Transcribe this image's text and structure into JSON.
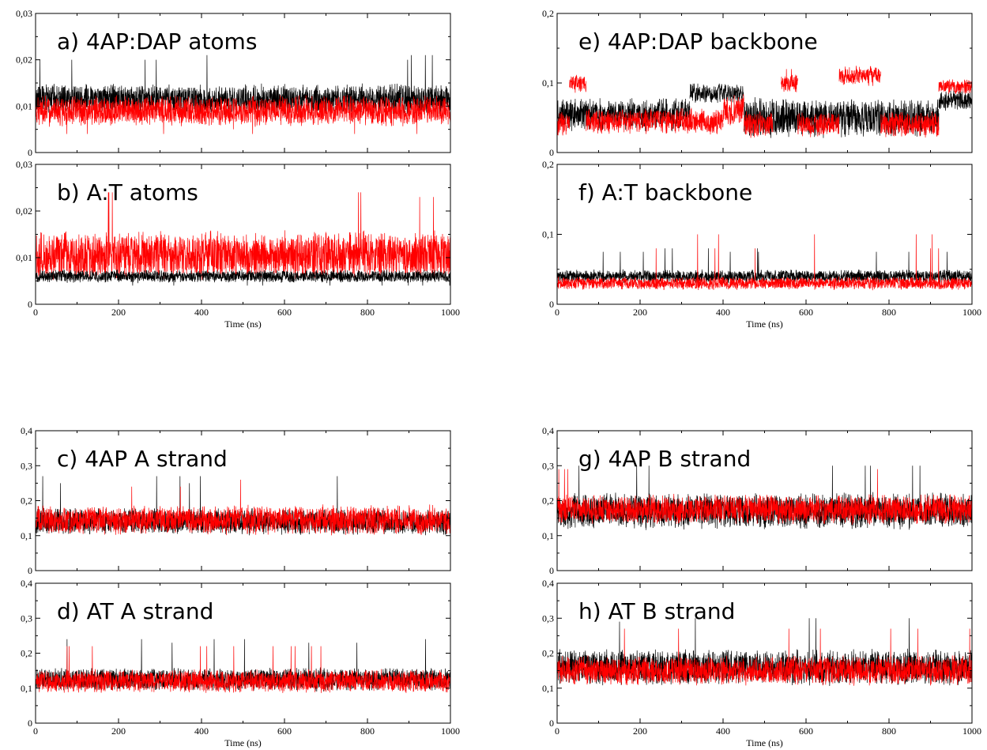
{
  "colors": {
    "series_black": "#000000",
    "series_red": "#ff0000",
    "frame": "#000000",
    "background": "#ffffff"
  },
  "chart_data": [
    {
      "id": "a",
      "type": "line",
      "title": "a) 4AP:DAP atoms",
      "xlabel": "",
      "ylabel": "",
      "xlim": [
        0,
        1000
      ],
      "ylim": [
        0,
        0.03
      ],
      "xticks": [],
      "yticks": [
        "0",
        "0,01",
        "0,02",
        "0,03"
      ],
      "yticks_values": [
        0,
        0.01,
        0.02,
        0.03
      ],
      "grid": false,
      "series": [
        {
          "color": "#000000",
          "segments": [
            {
              "x0": 0,
              "x1": 1000,
              "mean": 0.0115,
              "amp": 0.0035,
              "spikes": [
                0.02,
                0.021,
                0.02
              ]
            }
          ]
        },
        {
          "color": "#ff0000",
          "segments": [
            {
              "x0": 0,
              "x1": 1000,
              "mean": 0.009,
              "amp": 0.0035,
              "spikes": [
                0.004,
                0.005
              ]
            }
          ]
        }
      ]
    },
    {
      "id": "b",
      "type": "line",
      "title": "b) A:T atoms",
      "xlabel": "Time (ns)",
      "ylabel": "",
      "xlim": [
        0,
        1000
      ],
      "ylim": [
        0,
        0.03
      ],
      "xticks": [
        "0",
        "200",
        "400",
        "600",
        "800",
        "1000"
      ],
      "xticks_values": [
        0,
        200,
        400,
        600,
        800,
        1000
      ],
      "yticks": [
        "0",
        "0,01",
        "0,02",
        "0,03"
      ],
      "yticks_values": [
        0,
        0.01,
        0.02,
        0.03
      ],
      "grid": false,
      "series": [
        {
          "color": "#ff0000",
          "segments": [
            {
              "x0": 0,
              "x1": 1000,
              "mean": 0.0105,
              "amp": 0.0055,
              "spikes": [
                0.024,
                0.022,
                0.023
              ]
            }
          ]
        },
        {
          "color": "#000000",
          "segments": [
            {
              "x0": 0,
              "x1": 1000,
              "mean": 0.006,
              "amp": 0.0015,
              "spikes": [
                0.004
              ]
            }
          ]
        }
      ]
    },
    {
      "id": "c",
      "type": "line",
      "title": "c) 4AP A strand",
      "xlabel": "",
      "ylabel": "",
      "xlim": [
        0,
        1000
      ],
      "ylim": [
        0,
        0.4
      ],
      "xticks": [],
      "yticks": [
        "0",
        "0,1",
        "0,2",
        "0,3",
        "0,4"
      ],
      "yticks_values": [
        0,
        0.1,
        0.2,
        0.3,
        0.4
      ],
      "grid": false,
      "series": [
        {
          "color": "#000000",
          "segments": [
            {
              "x0": 0,
              "x1": 1000,
              "mean": 0.14,
              "amp": 0.04,
              "spikes": [
                0.27,
                0.25
              ]
            }
          ]
        },
        {
          "color": "#ff0000",
          "segments": [
            {
              "x0": 0,
              "x1": 1000,
              "mean": 0.145,
              "amp": 0.045,
              "spikes": [
                0.26,
                0.24
              ]
            }
          ]
        }
      ]
    },
    {
      "id": "d",
      "type": "line",
      "title": "d) AT A strand",
      "xlabel": "Time (ns)",
      "ylabel": "",
      "xlim": [
        0,
        1000
      ],
      "ylim": [
        0,
        0.4
      ],
      "xticks": [
        "0",
        "200",
        "400",
        "600",
        "800",
        "1000"
      ],
      "xticks_values": [
        0,
        200,
        400,
        600,
        800,
        1000
      ],
      "yticks": [
        "0",
        "0,1",
        "0,2",
        "0,3",
        "0,4"
      ],
      "yticks_values": [
        0,
        0.1,
        0.2,
        0.3,
        0.4
      ],
      "grid": false,
      "series": [
        {
          "color": "#000000",
          "segments": [
            {
              "x0": 0,
              "x1": 1000,
              "mean": 0.125,
              "amp": 0.035,
              "spikes": [
                0.24,
                0.23
              ]
            }
          ]
        },
        {
          "color": "#ff0000",
          "segments": [
            {
              "x0": 0,
              "x1": 1000,
              "mean": 0.12,
              "amp": 0.035,
              "spikes": [
                0.22
              ]
            }
          ]
        }
      ]
    },
    {
      "id": "e",
      "type": "line",
      "title": "e) 4AP:DAP backbone",
      "xlabel": "",
      "ylabel": "",
      "xlim": [
        0,
        1000
      ],
      "ylim": [
        0,
        0.2
      ],
      "xticks": [],
      "yticks": [
        "0",
        "0,1",
        "0,2"
      ],
      "yticks_values": [
        0,
        0.1,
        0.2
      ],
      "grid": false,
      "series": [
        {
          "color": "#000000",
          "segments": [
            {
              "x0": 0,
              "x1": 320,
              "mean": 0.055,
              "amp": 0.025,
              "spikes": []
            },
            {
              "x0": 320,
              "x1": 450,
              "mean": 0.085,
              "amp": 0.015,
              "spikes": []
            },
            {
              "x0": 450,
              "x1": 920,
              "mean": 0.05,
              "amp": 0.03,
              "spikes": []
            },
            {
              "x0": 920,
              "x1": 1000,
              "mean": 0.075,
              "amp": 0.015,
              "spikes": []
            }
          ]
        },
        {
          "color": "#ff0000",
          "segments": [
            {
              "x0": 0,
              "x1": 30,
              "mean": 0.04,
              "amp": 0.02,
              "spikes": []
            },
            {
              "x0": 30,
              "x1": 70,
              "mean": 0.1,
              "amp": 0.015,
              "spikes": [
                0.13
              ]
            },
            {
              "x0": 70,
              "x1": 400,
              "mean": 0.045,
              "amp": 0.02,
              "spikes": []
            },
            {
              "x0": 400,
              "x1": 450,
              "mean": 0.06,
              "amp": 0.025,
              "spikes": []
            },
            {
              "x0": 450,
              "x1": 520,
              "mean": 0.04,
              "amp": 0.02,
              "spikes": []
            },
            {
              "x0": 540,
              "x1": 580,
              "mean": 0.1,
              "amp": 0.015,
              "spikes": [
                0.12
              ]
            },
            {
              "x0": 580,
              "x1": 680,
              "mean": 0.04,
              "amp": 0.02,
              "spikes": []
            },
            {
              "x0": 680,
              "x1": 780,
              "mean": 0.11,
              "amp": 0.015,
              "spikes": [
                0.135
              ]
            },
            {
              "x0": 780,
              "x1": 920,
              "mean": 0.04,
              "amp": 0.02,
              "spikes": []
            },
            {
              "x0": 920,
              "x1": 1000,
              "mean": 0.095,
              "amp": 0.012,
              "spikes": []
            }
          ]
        }
      ]
    },
    {
      "id": "f",
      "type": "line",
      "title": "f) A:T backbone",
      "xlabel": "Time (ns)",
      "ylabel": "",
      "xlim": [
        0,
        1000
      ],
      "ylim": [
        0,
        0.2
      ],
      "xticks": [
        "0",
        "200",
        "400",
        "600",
        "800",
        "1000"
      ],
      "xticks_values": [
        0,
        200,
        400,
        600,
        800,
        1000
      ],
      "yticks": [
        "0",
        "0,1",
        "0,2"
      ],
      "yticks_values": [
        0,
        0.1,
        0.2
      ],
      "grid": false,
      "series": [
        {
          "color": "#000000",
          "segments": [
            {
              "x0": 0,
              "x1": 1000,
              "mean": 0.04,
              "amp": 0.01,
              "spikes": [
                0.08,
                0.075
              ]
            }
          ]
        },
        {
          "color": "#ff0000",
          "segments": [
            {
              "x0": 0,
              "x1": 1000,
              "mean": 0.03,
              "amp": 0.01,
              "spikes": [
                0.08,
                0.1,
                0.08
              ]
            }
          ]
        }
      ]
    },
    {
      "id": "g",
      "type": "line",
      "title": "g) 4AP B strand",
      "xlabel": "",
      "ylabel": "",
      "xlim": [
        0,
        1000
      ],
      "ylim": [
        0,
        0.4
      ],
      "xticks": [],
      "yticks": [
        "0",
        "0,1",
        "0,2",
        "0,3",
        "0,4"
      ],
      "yticks_values": [
        0,
        0.1,
        0.2,
        0.3,
        0.4
      ],
      "grid": false,
      "series": [
        {
          "color": "#000000",
          "segments": [
            {
              "x0": 0,
              "x1": 1000,
              "mean": 0.17,
              "amp": 0.055,
              "spikes": [
                0.3,
                0.3
              ]
            }
          ]
        },
        {
          "color": "#ff0000",
          "segments": [
            {
              "x0": 0,
              "x1": 1000,
              "mean": 0.175,
              "amp": 0.045,
              "spikes": [
                0.29
              ]
            }
          ]
        }
      ]
    },
    {
      "id": "h",
      "type": "line",
      "title": "h) AT B strand",
      "xlabel": "Time (ns)",
      "ylabel": "",
      "xlim": [
        0,
        1000
      ],
      "ylim": [
        0,
        0.4
      ],
      "xticks": [
        "0",
        "200",
        "400",
        "600",
        "800",
        "1000"
      ],
      "xticks_values": [
        0,
        200,
        400,
        600,
        800,
        1000
      ],
      "yticks": [
        "0",
        "0,1",
        "0,2",
        "0,3",
        "0,4"
      ],
      "yticks_values": [
        0,
        0.1,
        0.2,
        0.3,
        0.4
      ],
      "grid": false,
      "series": [
        {
          "color": "#000000",
          "segments": [
            {
              "x0": 0,
              "x1": 1000,
              "mean": 0.16,
              "amp": 0.055,
              "spikes": [
                0.3,
                0.29
              ]
            }
          ]
        },
        {
          "color": "#ff0000",
          "segments": [
            {
              "x0": 0,
              "x1": 1000,
              "mean": 0.15,
              "amp": 0.045,
              "spikes": [
                0.27
              ]
            }
          ]
        }
      ]
    }
  ]
}
